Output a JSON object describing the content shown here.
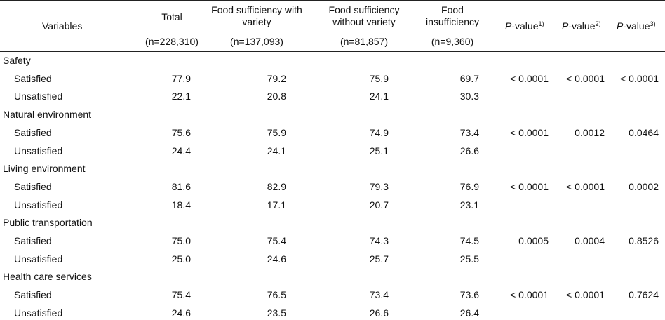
{
  "header": {
    "variables": "Variables",
    "cols": [
      {
        "title": "Total",
        "n": "(n=228,310)"
      },
      {
        "title": "Food sufficiency with variety",
        "title_line1": "Food sufficiency with",
        "title_line2": "variety",
        "n": "(n=137,093)"
      },
      {
        "title": "Food sufficiency without variety",
        "title_line1": "Food sufficiency",
        "title_line2": "without variety",
        "n": "(n=81,857)"
      },
      {
        "title": "Food insufficiency",
        "title_line1": "Food",
        "title_line2": "insufficiency",
        "n": "(n=9,360)"
      }
    ],
    "pvalues": [
      {
        "p": "P",
        "rest": "-value",
        "sup": "1)"
      },
      {
        "p": "P",
        "rest": "-value",
        "sup": "2)"
      },
      {
        "p": "P",
        "rest": "-value",
        "sup": "3)"
      }
    ]
  },
  "sections": [
    {
      "label": "Safety",
      "rows": [
        {
          "label": "Satisfied",
          "values": [
            "77.9",
            "79.2",
            "75.9",
            "69.7"
          ],
          "p": [
            "< 0.0001",
            "< 0.0001",
            "< 0.0001"
          ]
        },
        {
          "label": "Unsatisfied",
          "values": [
            "22.1",
            "20.8",
            "24.1",
            "30.3"
          ],
          "p": [
            "",
            "",
            ""
          ]
        }
      ]
    },
    {
      "label": "Natural environment",
      "rows": [
        {
          "label": "Satisfied",
          "values": [
            "75.6",
            "75.9",
            "74.9",
            "73.4"
          ],
          "p": [
            "< 0.0001",
            "0.0012",
            "0.0464"
          ]
        },
        {
          "label": "Unsatisfied",
          "values": [
            "24.4",
            "24.1",
            "25.1",
            "26.6"
          ],
          "p": [
            "",
            "",
            ""
          ]
        }
      ]
    },
    {
      "label": "Living environment",
      "rows": [
        {
          "label": "Satisfied",
          "values": [
            "81.6",
            "82.9",
            "79.3",
            "76.9"
          ],
          "p": [
            "< 0.0001",
            "< 0.0001",
            "0.0002"
          ]
        },
        {
          "label": "Unsatisfied",
          "values": [
            "18.4",
            "17.1",
            "20.7",
            "23.1"
          ],
          "p": [
            "",
            "",
            ""
          ]
        }
      ]
    },
    {
      "label": "Public transportation",
      "rows": [
        {
          "label": "Satisfied",
          "values": [
            "75.0",
            "75.4",
            "74.3",
            "74.5"
          ],
          "p": [
            "0.0005",
            "0.0004",
            "0.8526"
          ]
        },
        {
          "label": "Unsatisfied",
          "values": [
            "25.0",
            "24.6",
            "25.7",
            "25.5"
          ],
          "p": [
            "",
            "",
            ""
          ]
        }
      ]
    },
    {
      "label": "Health care services",
      "rows": [
        {
          "label": "Satisfied",
          "values": [
            "75.4",
            "76.5",
            "73.4",
            "73.6"
          ],
          "p": [
            "< 0.0001",
            "< 0.0001",
            "0.7624"
          ]
        },
        {
          "label": "Unsatisfied",
          "values": [
            "24.6",
            "23.5",
            "26.6",
            "26.4"
          ],
          "p": [
            "",
            "",
            ""
          ]
        }
      ]
    }
  ]
}
